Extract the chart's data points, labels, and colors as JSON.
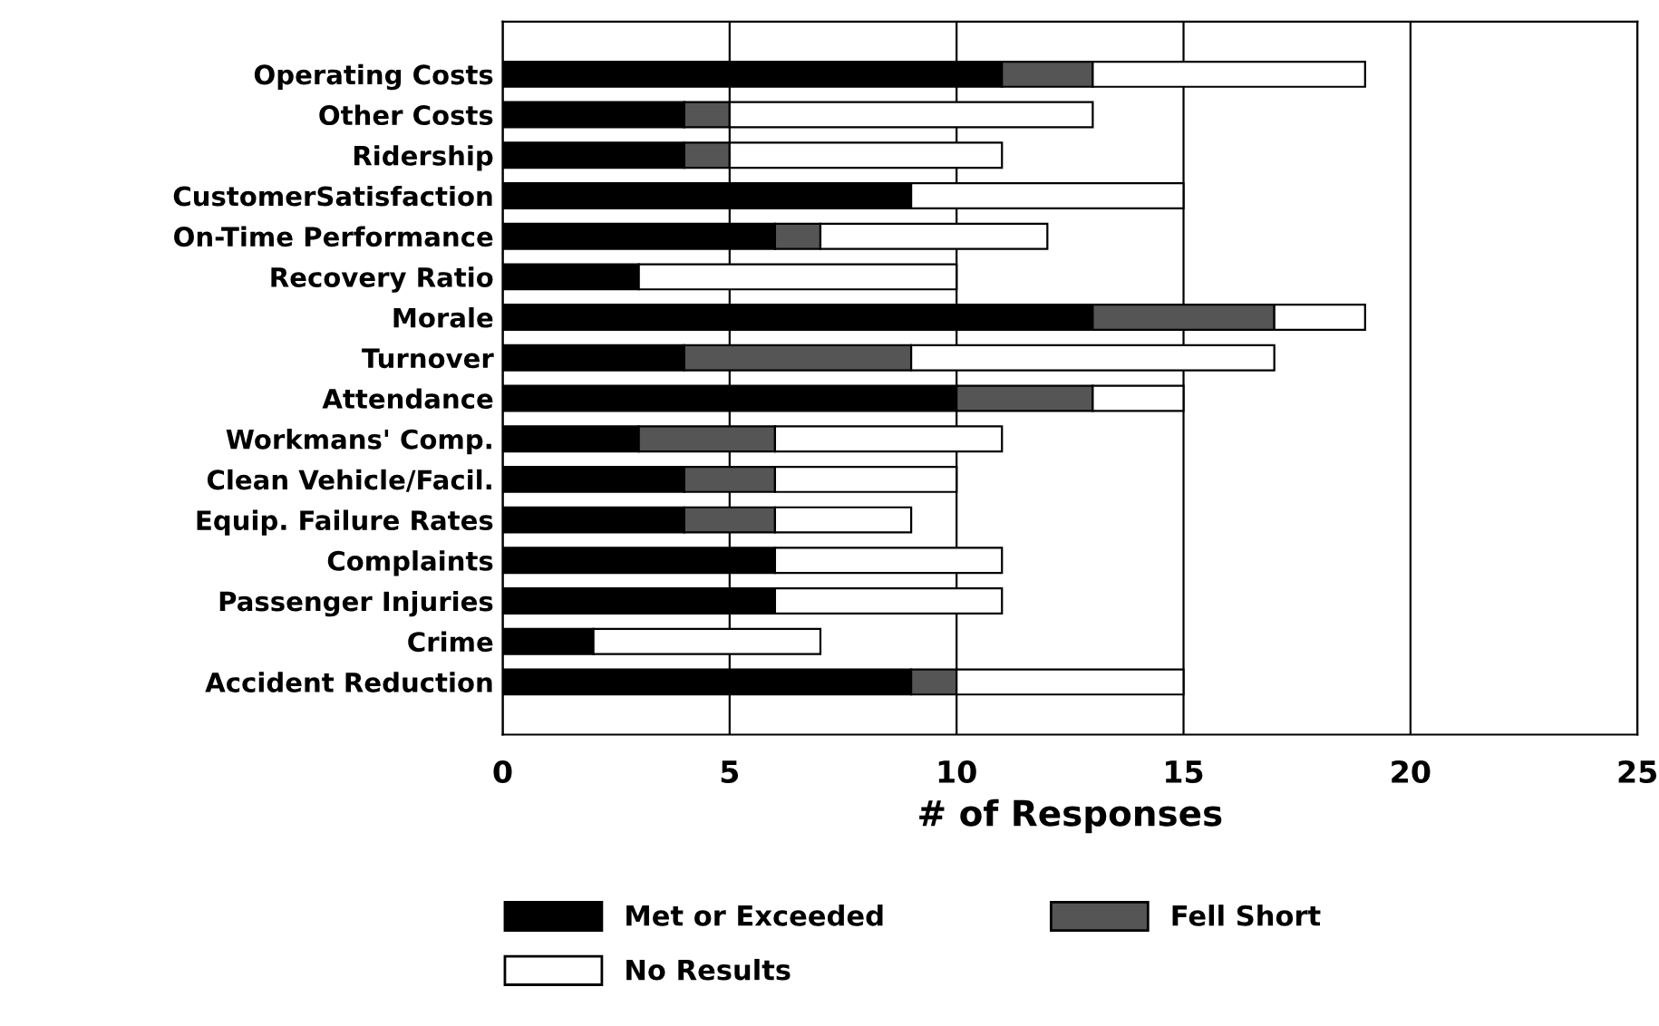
{
  "chart_data": {
    "type": "bar",
    "orientation": "horizontal",
    "stacked": true,
    "categories": [
      "Operating Costs",
      "Other Costs",
      "Ridership",
      "CustomerSatisfaction",
      "On-Time Performance",
      "Recovery Ratio",
      "Morale",
      "Turnover",
      "Attendance",
      "Workmans' Comp.",
      "Clean Vehicle/Facil.",
      "Equip. Failure Rates",
      "Complaints",
      "Passenger Injuries",
      "Crime",
      "Accident Reduction"
    ],
    "series": [
      {
        "name": "Met or Exceeded",
        "color": "#000000",
        "values": [
          11,
          4,
          4,
          9,
          6,
          3,
          13,
          4,
          10,
          3,
          4,
          4,
          6,
          6,
          2,
          9
        ]
      },
      {
        "name": "Fell Short",
        "color": "#555555",
        "values": [
          2,
          1,
          1,
          0,
          1,
          0,
          4,
          5,
          3,
          3,
          2,
          2,
          0,
          0,
          0,
          1
        ]
      },
      {
        "name": "No Results",
        "color": "#ffffff",
        "values": [
          6,
          8,
          6,
          6,
          5,
          7,
          2,
          8,
          2,
          5,
          4,
          3,
          5,
          5,
          5,
          5
        ]
      }
    ],
    "xlabel": "# of Responses",
    "xlim": [
      0,
      25
    ],
    "xticks": [
      0,
      5,
      10,
      15,
      20,
      25
    ],
    "grid": "x",
    "legend": "bottom"
  }
}
